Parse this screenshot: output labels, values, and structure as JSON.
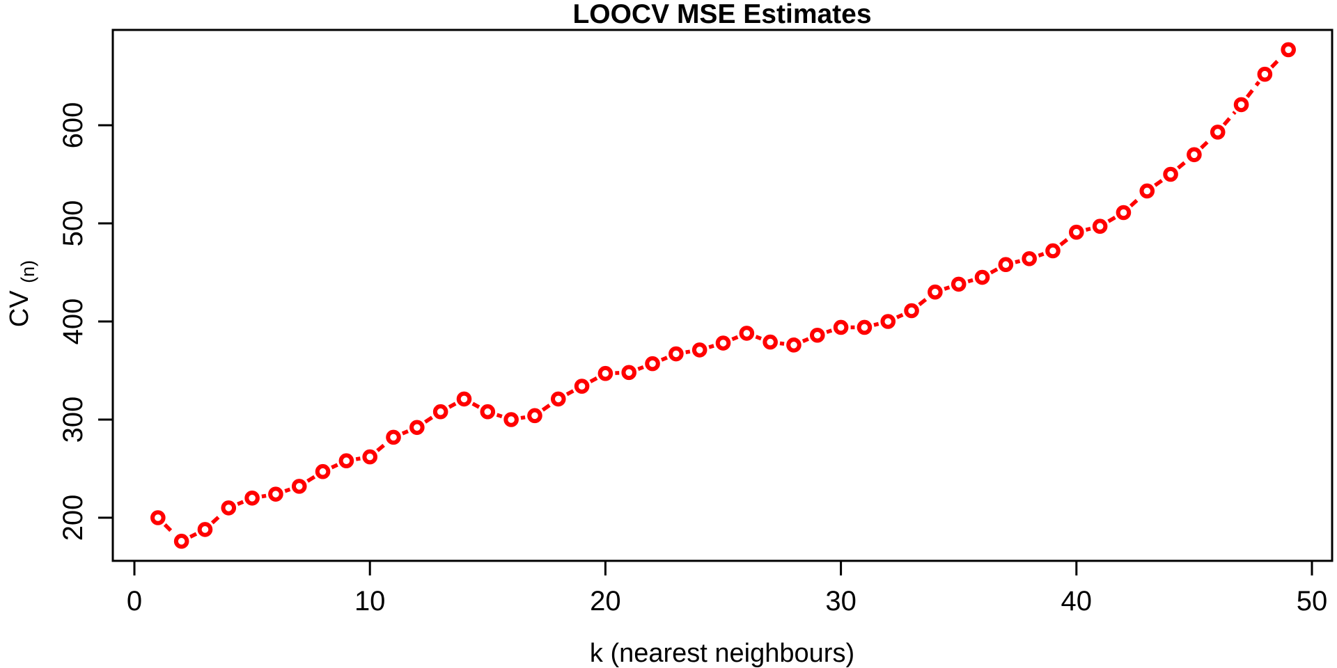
{
  "chart_data": {
    "type": "line",
    "title": "LOOCV MSE Estimates",
    "xlabel": "k (nearest neighbours)",
    "ylabel": "CV",
    "ylabel_subscript": "(n)",
    "series": [
      {
        "name": "LOOCV MSE estimate",
        "x": [
          1,
          2,
          3,
          4,
          5,
          6,
          7,
          8,
          9,
          10,
          11,
          12,
          13,
          14,
          15,
          16,
          17,
          18,
          19,
          20,
          21,
          22,
          23,
          24,
          25,
          26,
          27,
          28,
          29,
          30,
          31,
          32,
          33,
          34,
          35,
          36,
          37,
          38,
          39,
          40,
          41,
          42,
          43,
          44,
          45,
          46,
          47,
          48,
          49
        ],
        "y": [
          200,
          176,
          188,
          210,
          220,
          224,
          232,
          247,
          258,
          262,
          282,
          292,
          308,
          321,
          308,
          300,
          304,
          321,
          334,
          347,
          348,
          357,
          367,
          371,
          378,
          388,
          379,
          376,
          386,
          394,
          394,
          400,
          411,
          430,
          438,
          445,
          458,
          464,
          472,
          491,
          497,
          511,
          533,
          550,
          570,
          593,
          621,
          652,
          677
        ]
      }
    ],
    "x_ticks": [
      0,
      10,
      20,
      30,
      40,
      50
    ],
    "y_ticks": [
      200,
      300,
      400,
      500,
      600
    ],
    "xlim": [
      -0.92,
      50.92
    ],
    "ylim": [
      156,
      697
    ],
    "grid": false,
    "legend_position": "none",
    "marker": "open-circle",
    "line_style": "dashed",
    "colors": {
      "series": "#FF0000",
      "marker_fill": "#FFFFFF",
      "axis": "#000000",
      "background": "#FFFFFF"
    }
  }
}
